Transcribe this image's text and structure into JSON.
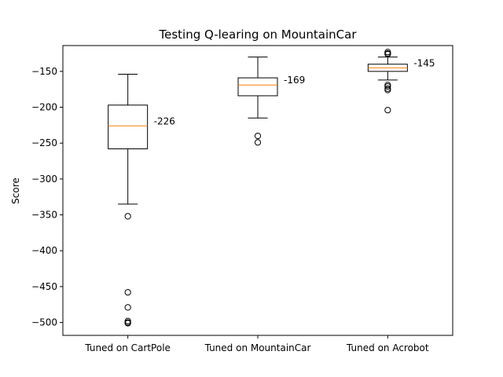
{
  "chart_data": {
    "type": "boxplot",
    "title": "Testing Q-learing on MountainCar",
    "xlabel": "",
    "ylabel": "Score",
    "ylim": [
      -518,
      -114
    ],
    "yticks": [
      -150,
      -200,
      -250,
      -300,
      -350,
      -400,
      -450,
      -500
    ],
    "ytick_labels": [
      "−150",
      "−200",
      "−250",
      "−300",
      "−350",
      "−400",
      "−450",
      "−500"
    ],
    "categories": [
      "Tuned on CartPole",
      "Tuned on MountainCar",
      "Tuned on Acrobot"
    ],
    "boxes": [
      {
        "name": "Tuned on CartPole",
        "whisker_high": -154,
        "q3": -197,
        "median": -226,
        "q1": -258,
        "whisker_low": -335,
        "outliers": [
          -352,
          -458,
          -479,
          -498,
          -500,
          -501
        ],
        "median_label": "-226"
      },
      {
        "name": "Tuned on MountainCar",
        "whisker_high": -130,
        "q3": -159,
        "median": -169,
        "q1": -184,
        "whisker_low": -215,
        "outliers": [
          -240,
          -249
        ],
        "median_label": "-169"
      },
      {
        "name": "Tuned on Acrobot",
        "whisker_high": -130,
        "q3": -140,
        "median": -145,
        "q1": -150,
        "whisker_low": -162,
        "outliers": [
          -123,
          -125,
          -126,
          -169,
          -171,
          -174,
          -176,
          -204
        ],
        "median_label": "-145"
      }
    ],
    "colors": {
      "box": "#000000",
      "median": "#ff7f0e",
      "background": "#ffffff"
    }
  }
}
